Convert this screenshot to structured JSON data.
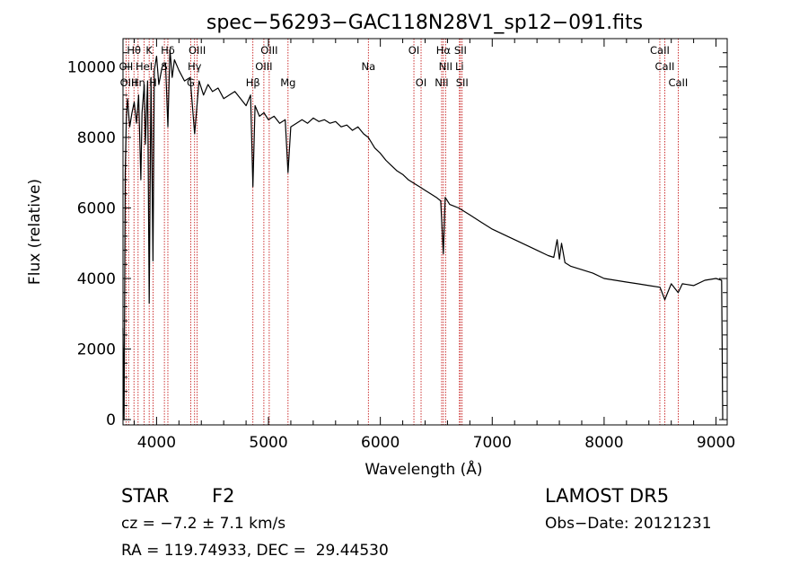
{
  "chart_data": {
    "type": "line",
    "title": "spec−56293−GAC118N28V1_sp12−091.fits",
    "xlabel": "Wavelength (Å)",
    "ylabel": "Flux (relative)",
    "xlim": [
      3700,
      9100
    ],
    "ylim": [
      -150,
      10800
    ],
    "xticks": [
      4000,
      5000,
      6000,
      7000,
      8000,
      9000
    ],
    "yticks": [
      0,
      2000,
      4000,
      6000,
      8000,
      10000
    ],
    "grid": false,
    "series": [
      {
        "x": [
          3700,
          3710,
          3720,
          3730,
          3740,
          3760,
          3780,
          3800,
          3820,
          3840,
          3860,
          3870,
          3890,
          3900,
          3920,
          3934,
          3950,
          3968,
          3980,
          4000,
          4020,
          4050,
          4080,
          4101,
          4120,
          4140,
          4160,
          4200,
          4250,
          4300,
          4340,
          4380,
          4420,
          4460,
          4500,
          4550,
          4600,
          4650,
          4700,
          4750,
          4800,
          4840,
          4861,
          4880,
          4920,
          4960,
          5000,
          5050,
          5100,
          5150,
          5175,
          5200,
          5250,
          5300,
          5350,
          5400,
          5450,
          5500,
          5550,
          5600,
          5650,
          5700,
          5750,
          5800,
          5850,
          5893,
          5950,
          6000,
          6050,
          6100,
          6150,
          6200,
          6250,
          6300,
          6350,
          6400,
          6450,
          6500,
          6540,
          6563,
          6580,
          6620,
          6700,
          6800,
          6900,
          7000,
          7100,
          7200,
          7300,
          7400,
          7500,
          7550,
          7580,
          7600,
          7620,
          7650,
          7700,
          7800,
          7900,
          8000,
          8100,
          8200,
          8300,
          8400,
          8500,
          8542,
          8600,
          8662,
          8700,
          8800,
          8900,
          9000,
          9050,
          9060
        ],
        "values": [
          2600,
          0,
          7000,
          8500,
          9100,
          8300,
          8700,
          9000,
          8400,
          9200,
          6800,
          8700,
          9500,
          7800,
          9600,
          3300,
          9700,
          4500,
          9900,
          10300,
          9500,
          10000,
          10100,
          8300,
          10500,
          9700,
          10200,
          9900,
          9600,
          9700,
          8100,
          9600,
          9200,
          9500,
          9300,
          9400,
          9100,
          9200,
          9300,
          9100,
          8900,
          9200,
          6600,
          8900,
          8600,
          8700,
          8500,
          8600,
          8400,
          8500,
          7000,
          8300,
          8400,
          8500,
          8400,
          8550,
          8450,
          8500,
          8400,
          8450,
          8300,
          8350,
          8200,
          8300,
          8100,
          8000,
          7700,
          7550,
          7350,
          7200,
          7050,
          6950,
          6800,
          6700,
          6600,
          6500,
          6400,
          6300,
          6200,
          4700,
          6300,
          6100,
          6000,
          5800,
          5600,
          5400,
          5250,
          5100,
          4950,
          4800,
          4650,
          4600,
          5100,
          4550,
          5000,
          4450,
          4350,
          4250,
          4150,
          4000,
          3950,
          3900,
          3850,
          3800,
          3750,
          3400,
          3850,
          3600,
          3850,
          3800,
          3950,
          4000,
          3950,
          0
        ]
      }
    ],
    "lines": [
      {
        "label": "Hθ",
        "x": 3798,
        "row": 0
      },
      {
        "label": "K",
        "x": 3934,
        "row": 0
      },
      {
        "label": "Hδ",
        "x": 4101,
        "row": 0
      },
      {
        "label": "OIII",
        "x": 4363,
        "row": 0
      },
      {
        "label": "OIII",
        "x": 5007,
        "row": 0
      },
      {
        "label": "OI",
        "x": 6300,
        "row": 0
      },
      {
        "label": "Hα",
        "x": 6563,
        "row": 0
      },
      {
        "label": "SII",
        "x": 6716,
        "row": 0
      },
      {
        "label": "CaII",
        "x": 8498,
        "row": 0
      },
      {
        "label": "OII",
        "x": 3727,
        "row": 1
      },
      {
        "label": "HeI",
        "x": 3889,
        "row": 1
      },
      {
        "label": "S",
        "x": 4070,
        "row": 1
      },
      {
        "label": "Hγ",
        "x": 4340,
        "row": 1
      },
      {
        "label": "OIII",
        "x": 4959,
        "row": 1
      },
      {
        "label": "Na",
        "x": 5893,
        "row": 1
      },
      {
        "label": "NII",
        "x": 6583,
        "row": 1
      },
      {
        "label": "Li",
        "x": 6707,
        "row": 1
      },
      {
        "label": "CaII",
        "x": 8542,
        "row": 1
      },
      {
        "label": "OIII",
        "x": 3750,
        "row": 2
      },
      {
        "label": "Hη",
        "x": 3835,
        "row": 2
      },
      {
        "label": "H",
        "x": 3968,
        "row": 2
      },
      {
        "label": "G",
        "x": 4305,
        "row": 2
      },
      {
        "label": "Hβ",
        "x": 4861,
        "row": 2
      },
      {
        "label": "Mg",
        "x": 5175,
        "row": 2
      },
      {
        "label": "OI",
        "x": 6364,
        "row": 2
      },
      {
        "label": "NII",
        "x": 6548,
        "row": 2
      },
      {
        "label": "SII",
        "x": 6731,
        "row": 2
      },
      {
        "label": "CaII",
        "x": 8662,
        "row": 2
      }
    ]
  },
  "info": {
    "class": "STAR",
    "subclass": "F2",
    "survey": "LAMOST DR5",
    "cz": "cz = −7.2 ± 7.1 km/s",
    "obsdate": "Obs−Date: 20121231",
    "radec": "RA = 119.74933, DEC =  29.44530"
  },
  "colors": {
    "spectrum": "#000000",
    "line_marker": "#c00000"
  }
}
